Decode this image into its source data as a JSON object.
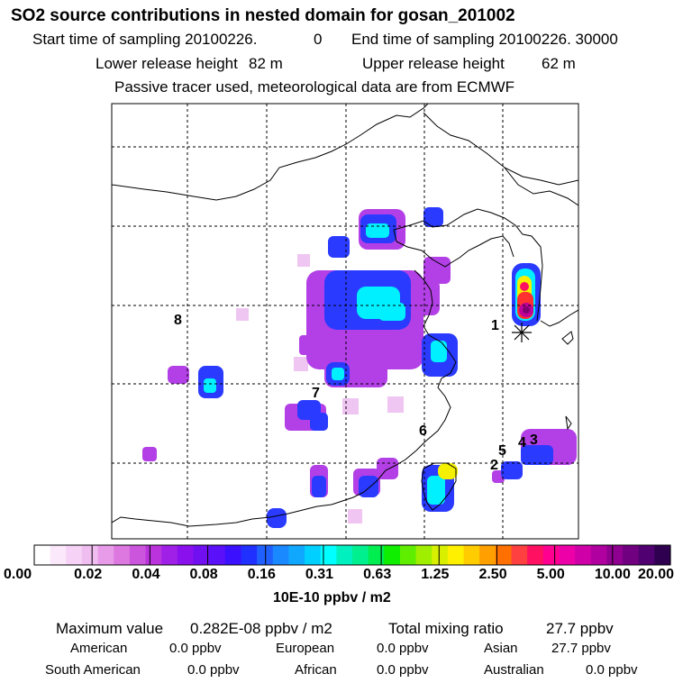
{
  "header": {
    "title": "SO2 source contributions in nested domain for gosan_201002",
    "start_label": "Start time of sampling 20100226.",
    "start_value": "0",
    "end_label": "End time of sampling 20100226. 30000",
    "lower_label": "Lower release height",
    "lower_value": "82 m",
    "upper_label": "Upper release height",
    "upper_value": "62 m",
    "tracer_note": "Passive tracer used, meteorological data are from ECMWF"
  },
  "map": {
    "region_labels": [
      "1",
      "2",
      "3",
      "4",
      "5",
      "6",
      "7",
      "8"
    ],
    "station_marker": "receptor-star-icon"
  },
  "colorbar": {
    "tick_labels": [
      "0.00",
      "0.02",
      "0.04",
      "0.08",
      "0.16",
      "0.31",
      "0.63",
      "1.25",
      "2.50",
      "5.00",
      "10.00",
      "20.00"
    ],
    "unit": "10E-10 ppbv / m2",
    "colors": [
      "#ffffff",
      "#fbe8fb",
      "#f6d2f6",
      "#f0bdf0",
      "#e79be9",
      "#dd78e0",
      "#cc55dd",
      "#bb33dd",
      "#a020e8",
      "#8a10ee",
      "#7010f0",
      "#5a10f8",
      "#3a10ff",
      "#2030ff",
      "#2060ff",
      "#1a88ff",
      "#10a8ff",
      "#00d0ff",
      "#00ffff",
      "#00f0c0",
      "#00f090",
      "#00ee50",
      "#10ee00",
      "#60ee00",
      "#a0ee00",
      "#d8f000",
      "#fff000",
      "#ffcc00",
      "#ffa000",
      "#ff7000",
      "#ff4040",
      "#ff1060",
      "#ff0090",
      "#ee00a8",
      "#d000a8",
      "#b000a0",
      "#900090",
      "#700080",
      "#500070",
      "#300050"
    ]
  },
  "footer": {
    "max_label": "Maximum value",
    "max_value": "0.282E-08 ppbv / m2",
    "total_label": "Total mixing ratio",
    "total_value": "27.7 ppbv",
    "regions": [
      {
        "name": "American",
        "value": "0.0 ppbv"
      },
      {
        "name": "European",
        "value": "0.0 ppbv"
      },
      {
        "name": "Asian",
        "value": "27.7 ppbv"
      },
      {
        "name": "South American",
        "value": "0.0 ppbv"
      },
      {
        "name": "African",
        "value": "0.0 ppbv"
      },
      {
        "name": "Australian",
        "value": "0.0 ppbv"
      }
    ]
  }
}
